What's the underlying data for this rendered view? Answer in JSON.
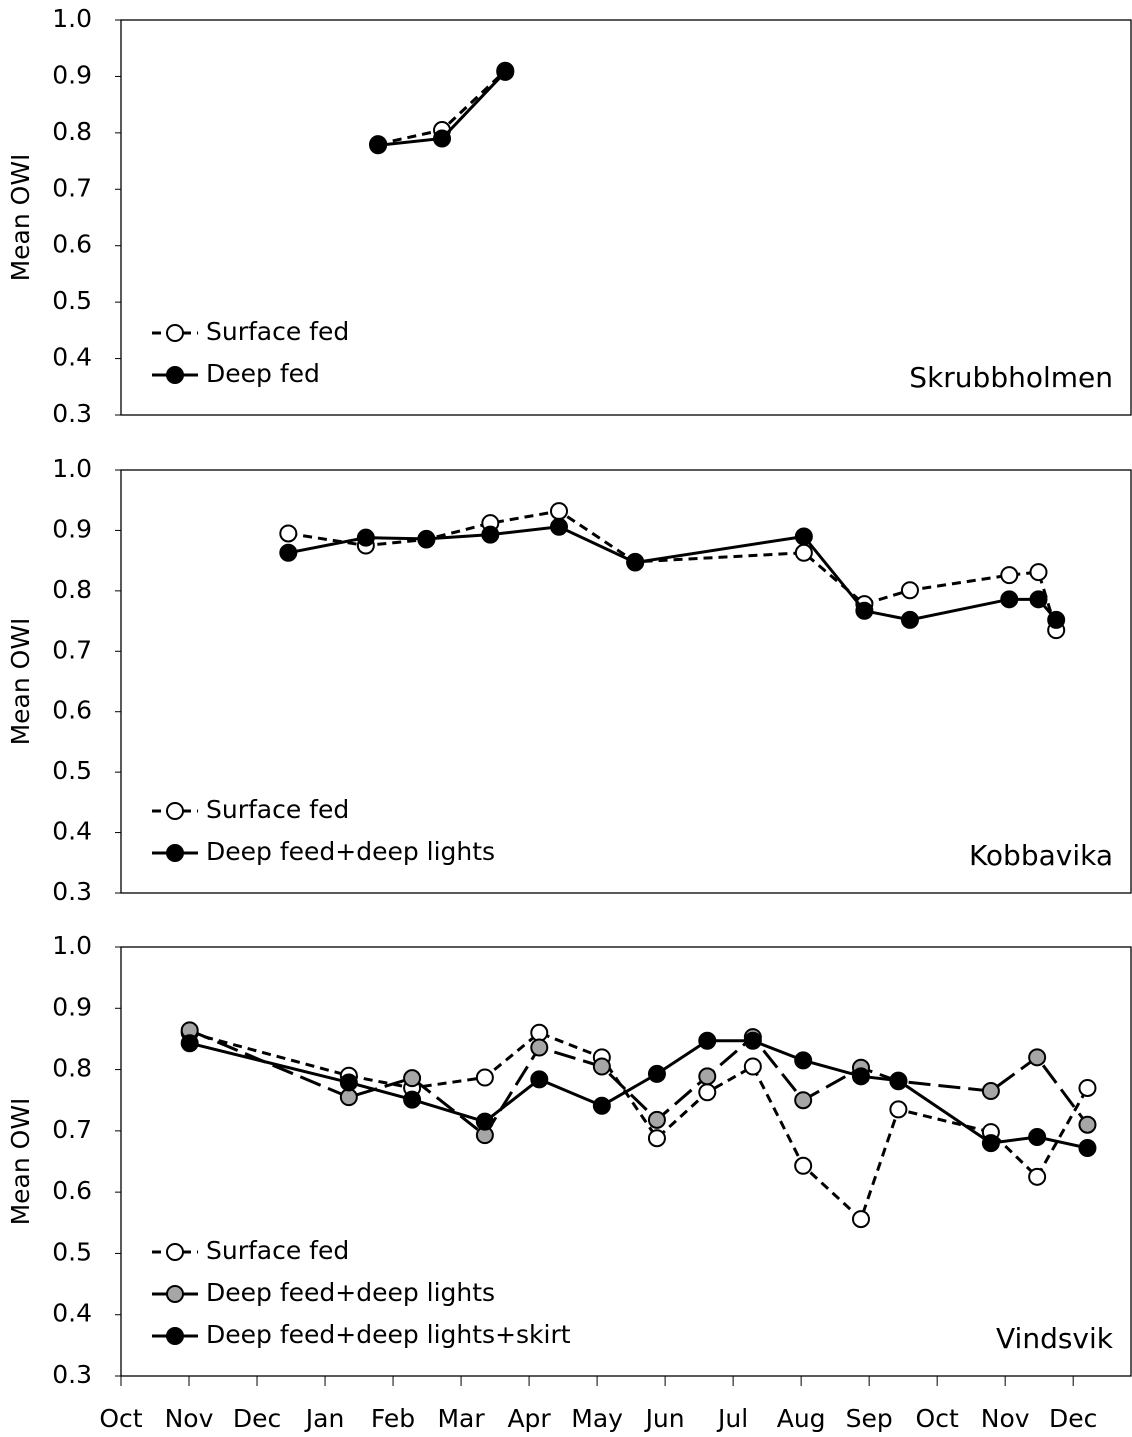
{
  "chart_data": [
    {
      "type": "line",
      "ylabel": "Mean OWI",
      "annotation": "Skrubbholmen",
      "legend": "lower left",
      "xlim": [
        0,
        14.85
      ],
      "ylim": [
        0.3,
        1.0
      ],
      "yticks": [
        0.3,
        0.4,
        0.5,
        0.6,
        0.7,
        0.8,
        0.9,
        {
          "value": 1.0,
          "label": "1.0"
        }
      ],
      "series": [
        {
          "name": "Surface fed",
          "color": "#ffffff",
          "line_style": "dashed",
          "x": [
            3.78,
            4.72,
            5.65
          ],
          "values": [
            0.78,
            0.805,
            0.91
          ]
        },
        {
          "name": "Deep fed",
          "color": "#000000",
          "line_style": "solid",
          "x": [
            3.78,
            4.72,
            5.65
          ],
          "values": [
            0.778,
            0.79,
            0.908
          ]
        }
      ]
    },
    {
      "type": "line",
      "ylabel": "Mean OWI",
      "annotation": "Kobbavika",
      "legend": "lower left",
      "xlim": [
        0,
        14.85
      ],
      "ylim": [
        0.3,
        1.0
      ],
      "yticks": [
        0.3,
        0.4,
        0.5,
        0.6,
        0.7,
        0.8,
        0.9,
        {
          "value": 1.0,
          "label": "1.0"
        }
      ],
      "series": [
        {
          "name": "Surface fed",
          "color": "#ffffff",
          "line_style": "dashed",
          "x": [
            2.46,
            3.6,
            4.49,
            5.43,
            6.44,
            7.56,
            10.04,
            10.93,
            11.6,
            13.06,
            13.49,
            13.75
          ],
          "values": [
            0.895,
            0.875,
            0.885,
            0.912,
            0.932,
            0.848,
            0.863,
            0.778,
            0.801,
            0.826,
            0.831,
            0.735
          ]
        },
        {
          "name": "Deep feed+deep lights",
          "color": "#000000",
          "line_style": "solid",
          "x": [
            2.46,
            3.6,
            4.49,
            5.43,
            6.44,
            7.56,
            10.04,
            10.93,
            11.6,
            13.06,
            13.49,
            13.75
          ],
          "values": [
            0.863,
            0.888,
            0.886,
            0.893,
            0.906,
            0.847,
            0.89,
            0.767,
            0.752,
            0.786,
            0.786,
            0.752
          ]
        }
      ]
    },
    {
      "type": "line",
      "ylabel": "Mean OWI",
      "annotation": "Vindsvik",
      "legend": "lower left",
      "xlim": [
        0,
        14.85
      ],
      "ylim": [
        0.3,
        1.0
      ],
      "yticks": [
        0.3,
        0.4,
        0.5,
        0.6,
        0.7,
        0.8,
        0.9,
        {
          "value": 1.0,
          "label": "1.0"
        }
      ],
      "xticks": [
        {
          "value": 0,
          "label": "Oct"
        },
        {
          "value": 1,
          "label": "Nov"
        },
        {
          "value": 2,
          "label": "Dec"
        },
        {
          "value": 3,
          "label": "Jan"
        },
        {
          "value": 4,
          "label": "Feb"
        },
        {
          "value": 5,
          "label": "Mar"
        },
        {
          "value": 6,
          "label": "Apr"
        },
        {
          "value": 7,
          "label": "May"
        },
        {
          "value": 8,
          "label": "Jun"
        },
        {
          "value": 9,
          "label": "Jul"
        },
        {
          "value": 10,
          "label": "Aug"
        },
        {
          "value": 11,
          "label": "Sep"
        },
        {
          "value": 12,
          "label": "Oct"
        },
        {
          "value": 13,
          "label": "Nov"
        },
        {
          "value": 14,
          "label": "Dec"
        }
      ],
      "series": [
        {
          "name": "Surface fed",
          "color": "#ffffff",
          "line_style": "dashed",
          "x": [
            1.01,
            3.35,
            4.28,
            5.35,
            6.15,
            7.07,
            7.88,
            8.62,
            9.29,
            10.03,
            10.88,
            11.43,
            12.79,
            13.47,
            14.21
          ],
          "values": [
            0.86,
            0.79,
            0.77,
            0.787,
            0.86,
            0.82,
            0.688,
            0.763,
            0.805,
            0.643,
            0.556,
            0.735,
            0.698,
            0.625,
            0.77
          ]
        },
        {
          "name": "Deep feed+deep lights",
          "color": "#a6a6a6",
          "line_style": "longdash",
          "x": [
            1.01,
            3.35,
            4.28,
            5.35,
            6.15,
            7.07,
            7.88,
            8.62,
            9.29,
            10.03,
            10.88,
            11.43,
            12.79,
            13.47,
            14.21
          ],
          "values": [
            0.864,
            0.755,
            0.786,
            0.693,
            0.836,
            0.805,
            0.718,
            0.789,
            0.853,
            0.75,
            0.803,
            0.781,
            0.765,
            0.82,
            0.71
          ]
        },
        {
          "name": "Deep feed+deep lights+skirt",
          "color": "#000000",
          "line_style": "solid",
          "x": [
            1.01,
            3.35,
            4.28,
            5.35,
            6.15,
            7.07,
            7.88,
            8.62,
            9.29,
            10.03,
            10.88,
            11.43,
            12.79,
            13.47,
            14.21
          ],
          "values": [
            0.843,
            0.779,
            0.751,
            0.715,
            0.784,
            0.741,
            0.793,
            0.847,
            0.847,
            0.815,
            0.789,
            0.782,
            0.68,
            0.69,
            0.672
          ]
        }
      ]
    }
  ]
}
